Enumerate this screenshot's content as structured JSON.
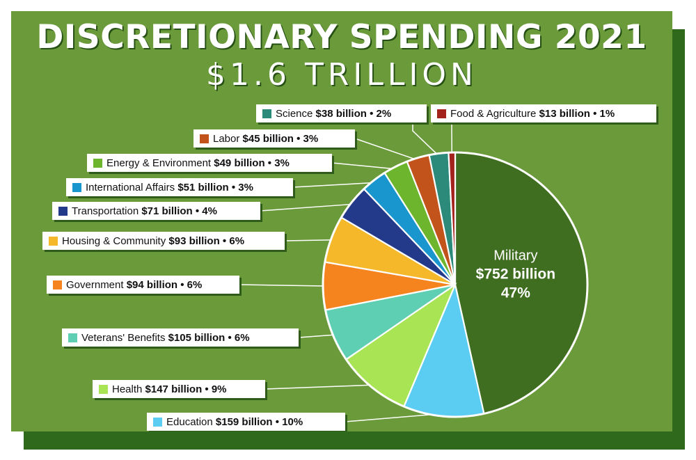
{
  "chart_data": {
    "type": "pie",
    "title": "DISCRETIONARY SPENDING 2021",
    "subtitle": "$1.6 TRILLION",
    "slices": [
      {
        "name": "Military",
        "amount": "$752 billion",
        "percent": "47%",
        "value": 752,
        "color": "#3f6e21"
      },
      {
        "name": "Education",
        "amount": "$159 billion",
        "percent": "10%",
        "value": 159,
        "color": "#5ccdf2"
      },
      {
        "name": "Health",
        "amount": "$147 billion",
        "percent": "9%",
        "value": 147,
        "color": "#a8e454"
      },
      {
        "name": "Veterans' Benefits",
        "amount": "$105 billion",
        "percent": "6%",
        "value": 105,
        "color": "#5fcfb4"
      },
      {
        "name": "Government",
        "amount": "$94 billion",
        "percent": "6%",
        "value": 94,
        "color": "#f5841f"
      },
      {
        "name": "Housing & Community",
        "amount": "$93 billion",
        "percent": "6%",
        "value": 93,
        "color": "#f4b82a"
      },
      {
        "name": "Transportation",
        "amount": "$71 billion",
        "percent": "4%",
        "value": 71,
        "color": "#233a8a"
      },
      {
        "name": "International Affairs",
        "amount": "$51 billion",
        "percent": "3%",
        "value": 51,
        "color": "#1a96cf"
      },
      {
        "name": "Energy & Environment",
        "amount": "$49 billion",
        "percent": "3%",
        "value": 49,
        "color": "#6db52c"
      },
      {
        "name": "Labor",
        "amount": "$45 billion",
        "percent": "3%",
        "value": 45,
        "color": "#c2531b"
      },
      {
        "name": "Science",
        "amount": "$38 billion",
        "percent": "2%",
        "value": 38,
        "color": "#2b8a7a"
      },
      {
        "name": "Food & Agriculture",
        "amount": "$13 billion",
        "percent": "1%",
        "value": 13,
        "color": "#a3221b"
      }
    ]
  }
}
